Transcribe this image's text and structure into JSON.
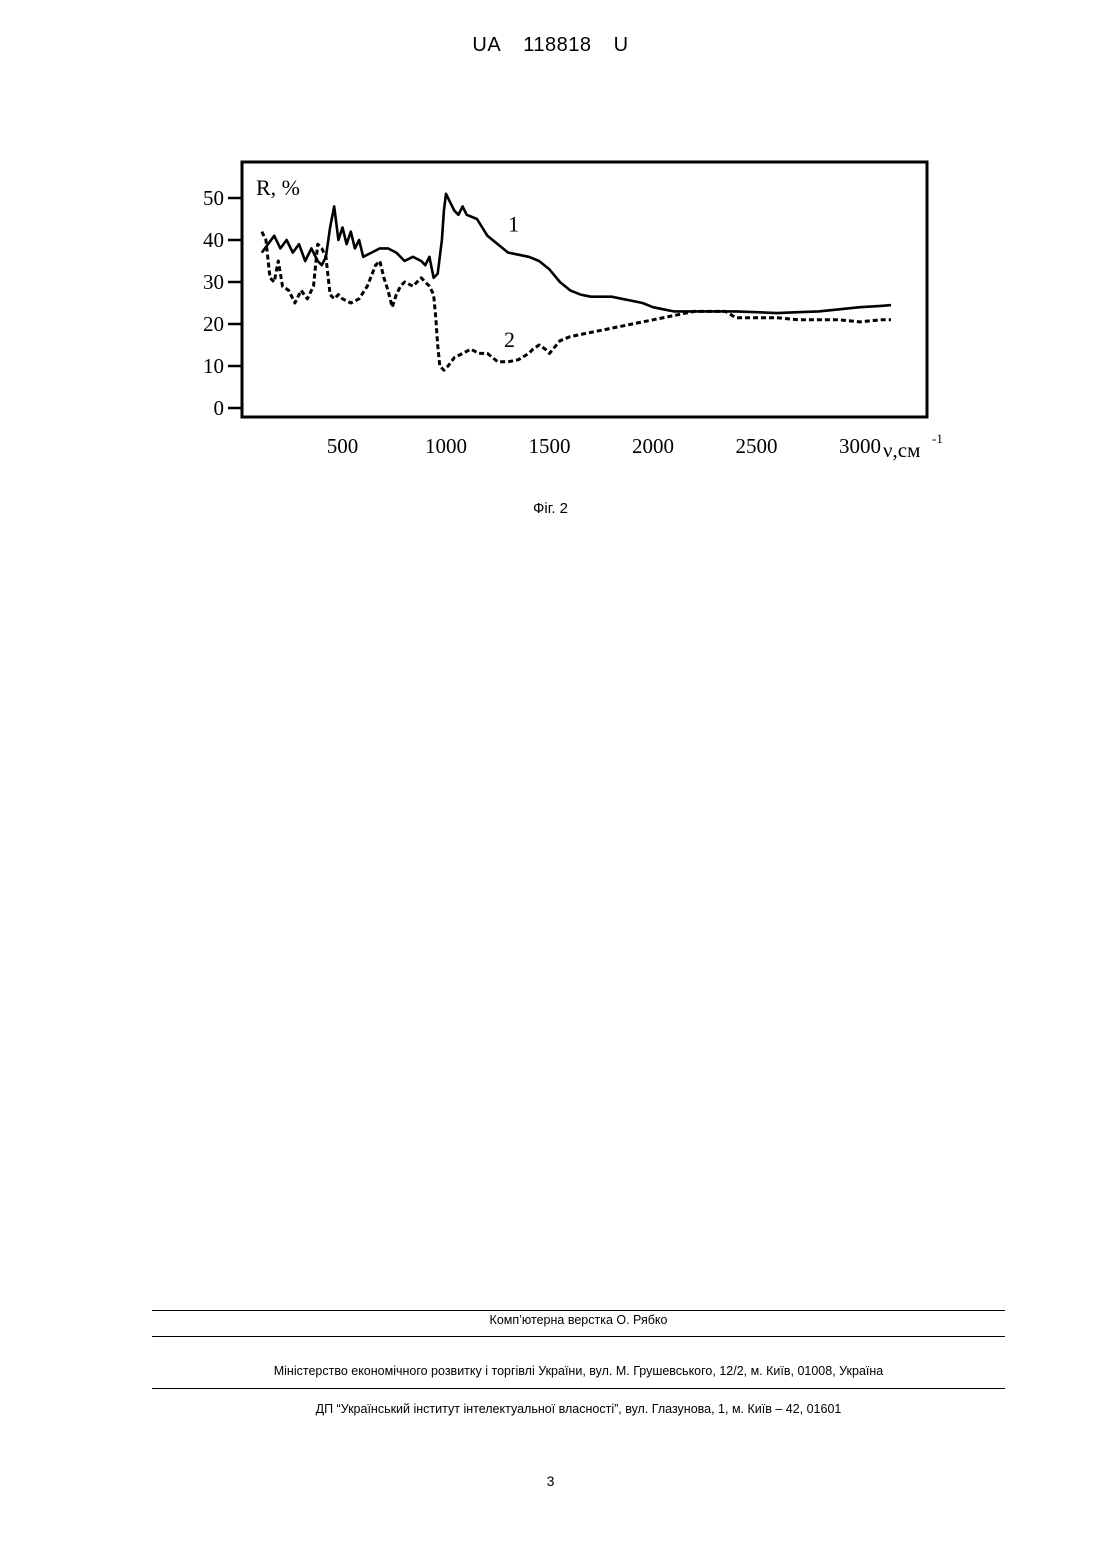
{
  "header": {
    "prefix": "UA",
    "number": "118818",
    "kind": "U"
  },
  "figure": {
    "caption": "Фіг. 2"
  },
  "chart_data": {
    "type": "line",
    "ylabel": "R, %",
    "xlabel": "ν,см",
    "xlabel_superscript": "-1",
    "xlim": [
      100,
      3250
    ],
    "ylim": [
      0,
      55
    ],
    "xticks": [
      500,
      1000,
      1500,
      2000,
      2500,
      3000
    ],
    "yticks": [
      0,
      10,
      20,
      30,
      40,
      50
    ],
    "grid": false,
    "series": [
      {
        "name": "1",
        "style": "solid",
        "x": [
          110,
          140,
          170,
          200,
          230,
          260,
          290,
          320,
          350,
          380,
          400,
          420,
          440,
          460,
          480,
          500,
          520,
          540,
          560,
          580,
          600,
          640,
          680,
          720,
          760,
          800,
          840,
          880,
          900,
          920,
          940,
          960,
          980,
          990,
          1000,
          1020,
          1040,
          1060,
          1080,
          1100,
          1150,
          1200,
          1250,
          1300,
          1350,
          1400,
          1450,
          1500,
          1550,
          1600,
          1650,
          1700,
          1750,
          1800,
          1850,
          1900,
          1950,
          2000,
          2050,
          2100,
          2150,
          2200,
          2300,
          2400,
          2500,
          2600,
          2700,
          2800,
          2900,
          3000,
          3100,
          3150
        ],
        "y": [
          37,
          39,
          41,
          38,
          40,
          37,
          39,
          35,
          38,
          35,
          34,
          36,
          43,
          48,
          40,
          43,
          39,
          42,
          38,
          40,
          36,
          37,
          38,
          38,
          37,
          35,
          36,
          35,
          34,
          36,
          31,
          32,
          40,
          47,
          51,
          49,
          47,
          46,
          48,
          46,
          45,
          41,
          39,
          37,
          36.5,
          36,
          35,
          33,
          30,
          28,
          27,
          26.5,
          26.5,
          26.5,
          26,
          25.5,
          25,
          24,
          23.5,
          23,
          23,
          23,
          23,
          23,
          22.8,
          22.6,
          22.8,
          23,
          23.5,
          24,
          24.3,
          24.5
        ]
      },
      {
        "name": "2",
        "style": "dashed",
        "x": [
          110,
          130,
          150,
          170,
          190,
          210,
          240,
          270,
          300,
          330,
          360,
          380,
          400,
          420,
          440,
          460,
          480,
          500,
          540,
          580,
          620,
          660,
          680,
          700,
          720,
          740,
          760,
          780,
          800,
          840,
          880,
          900,
          920,
          940,
          950,
          960,
          970,
          990,
          1010,
          1040,
          1080,
          1120,
          1160,
          1200,
          1250,
          1300,
          1350,
          1400,
          1420,
          1450,
          1480,
          1500,
          1550,
          1600,
          1700,
          1800,
          1900,
          2000,
          2100,
          2200,
          2300,
          2350,
          2400,
          2500,
          2600,
          2700,
          2800,
          2900,
          3000,
          3100,
          3150
        ],
        "y": [
          42,
          40,
          31,
          30,
          35,
          29,
          28,
          25,
          28,
          26,
          29,
          39,
          38,
          36,
          27,
          26,
          27,
          26,
          25,
          26,
          29,
          34,
          35,
          31,
          28,
          24,
          27,
          29,
          30,
          29,
          31,
          30,
          29,
          27,
          22,
          15,
          10,
          9,
          10,
          12,
          13,
          14,
          13,
          13,
          11,
          11,
          11.5,
          13,
          14,
          15,
          14,
          13,
          16,
          17,
          18,
          19,
          20,
          21,
          22,
          23,
          23,
          23,
          21.5,
          21.5,
          21.5,
          21,
          21,
          21,
          20.5,
          21,
          21
        ]
      }
    ],
    "annotations": [
      {
        "text": "1",
        "x": 1300,
        "y": 42
      },
      {
        "text": "2",
        "x": 1280,
        "y": 14.5
      }
    ]
  },
  "footer": {
    "layout": "Комп’ютерна верстка О. Рябко",
    "ministry": "Міністерство економічного розвитку і торгівлі України, вул. М. Грушевського, 12/2, м. Київ, 01008, Україна",
    "institute": "ДП “Український інститут інтелектуальної власності”, вул. Глазунова, 1, м. Київ – 42, 01601"
  },
  "page_number": "3"
}
